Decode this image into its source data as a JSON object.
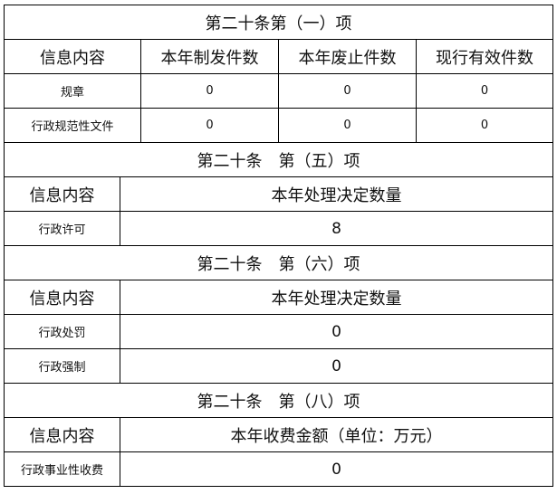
{
  "section1": {
    "title": "第二十条第（一）项",
    "headers": [
      "信息内容",
      "本年制发件数",
      "本年废止件数",
      "现行有效件数"
    ],
    "rows": [
      {
        "label": "规章",
        "values": [
          "0",
          "0",
          "0"
        ]
      },
      {
        "label": "行政规范性文件",
        "values": [
          "0",
          "0",
          "0"
        ]
      }
    ]
  },
  "section2": {
    "title": "第二十条　第（五）项",
    "headers": [
      "信息内容",
      "本年处理决定数量"
    ],
    "rows": [
      {
        "label": "行政许可",
        "value": "8"
      }
    ]
  },
  "section3": {
    "title": "第二十条　第（六）项",
    "headers": [
      "信息内容",
      "本年处理决定数量"
    ],
    "rows": [
      {
        "label": "行政处罚",
        "value": "0"
      },
      {
        "label": "行政强制",
        "value": "0"
      }
    ]
  },
  "section4": {
    "title": "第二十条　第（八）项",
    "headers": [
      "信息内容",
      "本年收费金额（单位：万元）"
    ],
    "rows": [
      {
        "label": "行政事业性收费",
        "value": "0"
      }
    ]
  }
}
